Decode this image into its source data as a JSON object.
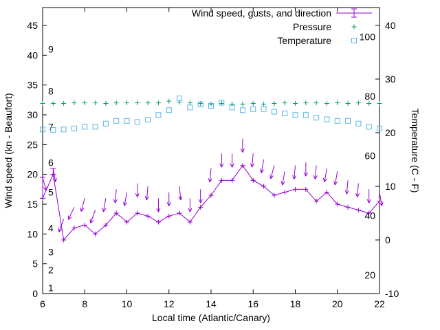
{
  "chart_data": {
    "type": "line",
    "xlabel": "Local time (Atlantic/Canary)",
    "ylabel": "Wind speed (kn - Beaufort)",
    "y2label": "Temperature (C - F)",
    "x_range": [
      6,
      22
    ],
    "y_left_range": [
      0,
      48
    ],
    "y_right_range_celsius": [
      -10,
      43.3
    ],
    "x_ticks": [
      6,
      8,
      10,
      12,
      14,
      16,
      18,
      20,
      22
    ],
    "y_left_ticks": [
      0,
      5,
      10,
      15,
      20,
      25,
      30,
      35,
      40,
      45
    ],
    "y_right_ticks": [
      -10,
      0,
      10,
      20,
      30,
      40
    ],
    "beaufort_scale": [
      {
        "b": "1",
        "kn": 1
      },
      {
        "b": "2",
        "kn": 4
      },
      {
        "b": "3",
        "kn": 7
      },
      {
        "b": "4",
        "kn": 11
      },
      {
        "b": "5",
        "kn": 17
      },
      {
        "b": "6",
        "kn": 22
      },
      {
        "b": "7",
        "kn": 28
      },
      {
        "b": "8",
        "kn": 34
      },
      {
        "b": "9",
        "kn": 41
      }
    ],
    "fahrenheit_labels": [
      20,
      40,
      60,
      80,
      100
    ],
    "legend": [
      {
        "label": "Wind speed, gusts, and direction",
        "series": "wind"
      },
      {
        "label": "Pressure",
        "series": "pressure"
      },
      {
        "label": "Temperature",
        "series": "temperature"
      }
    ],
    "colors": {
      "wind": "#9400D3",
      "pressure": "#009E73",
      "temperature": "#56B4E9",
      "axis": "#000000"
    },
    "x": [
      6,
      6.5,
      7,
      7.5,
      8,
      8.5,
      9,
      9.5,
      10,
      10.5,
      11,
      11.5,
      12,
      12.5,
      13,
      13.5,
      14,
      14.5,
      15,
      15.5,
      16,
      16.5,
      17,
      17.5,
      18,
      18.5,
      19,
      19.5,
      20,
      20.5,
      21,
      21.5,
      22
    ],
    "series": [
      {
        "name": "wind_speed_kn",
        "axis": "left",
        "values": [
          16,
          20,
          9,
          11,
          11.5,
          10,
          11.5,
          13.5,
          12,
          13.5,
          13,
          12,
          13,
          13.5,
          12,
          14.5,
          16.5,
          19,
          19,
          21.5,
          19,
          18,
          16.5,
          17,
          17.5,
          17.5,
          15.5,
          17,
          15,
          14.5,
          14,
          13.5,
          15.5
        ]
      },
      {
        "name": "gusts_kn",
        "axis": "left",
        "values": [
          19.5,
          21,
          12.5,
          14.5,
          16,
          14,
          16,
          17.5,
          17,
          18.5,
          18,
          16,
          17,
          18,
          16,
          17.5,
          21,
          23.5,
          23.5,
          26,
          23.5,
          22.5,
          21.5,
          20.5,
          21.5,
          22,
          21.5,
          21,
          20.5,
          19,
          18.5,
          17.5,
          17
        ]
      },
      {
        "name": "wind_direction_deg",
        "axis": "none",
        "values": [
          165,
          170,
          200,
          205,
          195,
          200,
          190,
          185,
          190,
          180,
          185,
          180,
          180,
          175,
          180,
          180,
          185,
          180,
          180,
          180,
          185,
          190,
          195,
          190,
          185,
          180,
          185,
          190,
          190,
          185,
          185,
          180,
          170
        ]
      },
      {
        "name": "pressure_plotted_left_units",
        "axis": "left",
        "values": [
          31.9,
          31.9,
          31.9,
          32,
          32,
          32,
          31.9,
          32,
          32,
          32,
          32,
          32,
          32.3,
          32.1,
          32,
          31.9,
          31.8,
          31.9,
          31.8,
          31.8,
          31.9,
          31.8,
          31.9,
          32,
          31.9,
          32,
          32,
          31.9,
          32,
          31.9,
          32,
          31.9,
          31.9
        ]
      },
      {
        "name": "temperature_C",
        "axis": "right",
        "values": [
          20.6,
          20.5,
          20.6,
          20.8,
          21.1,
          21.1,
          21.7,
          22.2,
          22.2,
          22.0,
          22.4,
          23.3,
          24.2,
          26.4,
          24.7,
          25.3,
          25.0,
          25.6,
          24.7,
          24.2,
          24.4,
          24.4,
          23.9,
          23.6,
          23.3,
          23.3,
          22.8,
          22.5,
          22.2,
          22.2,
          21.7,
          21.1,
          20.8
        ]
      }
    ],
    "errorbar_point_indices": [
      0,
      1
    ]
  }
}
